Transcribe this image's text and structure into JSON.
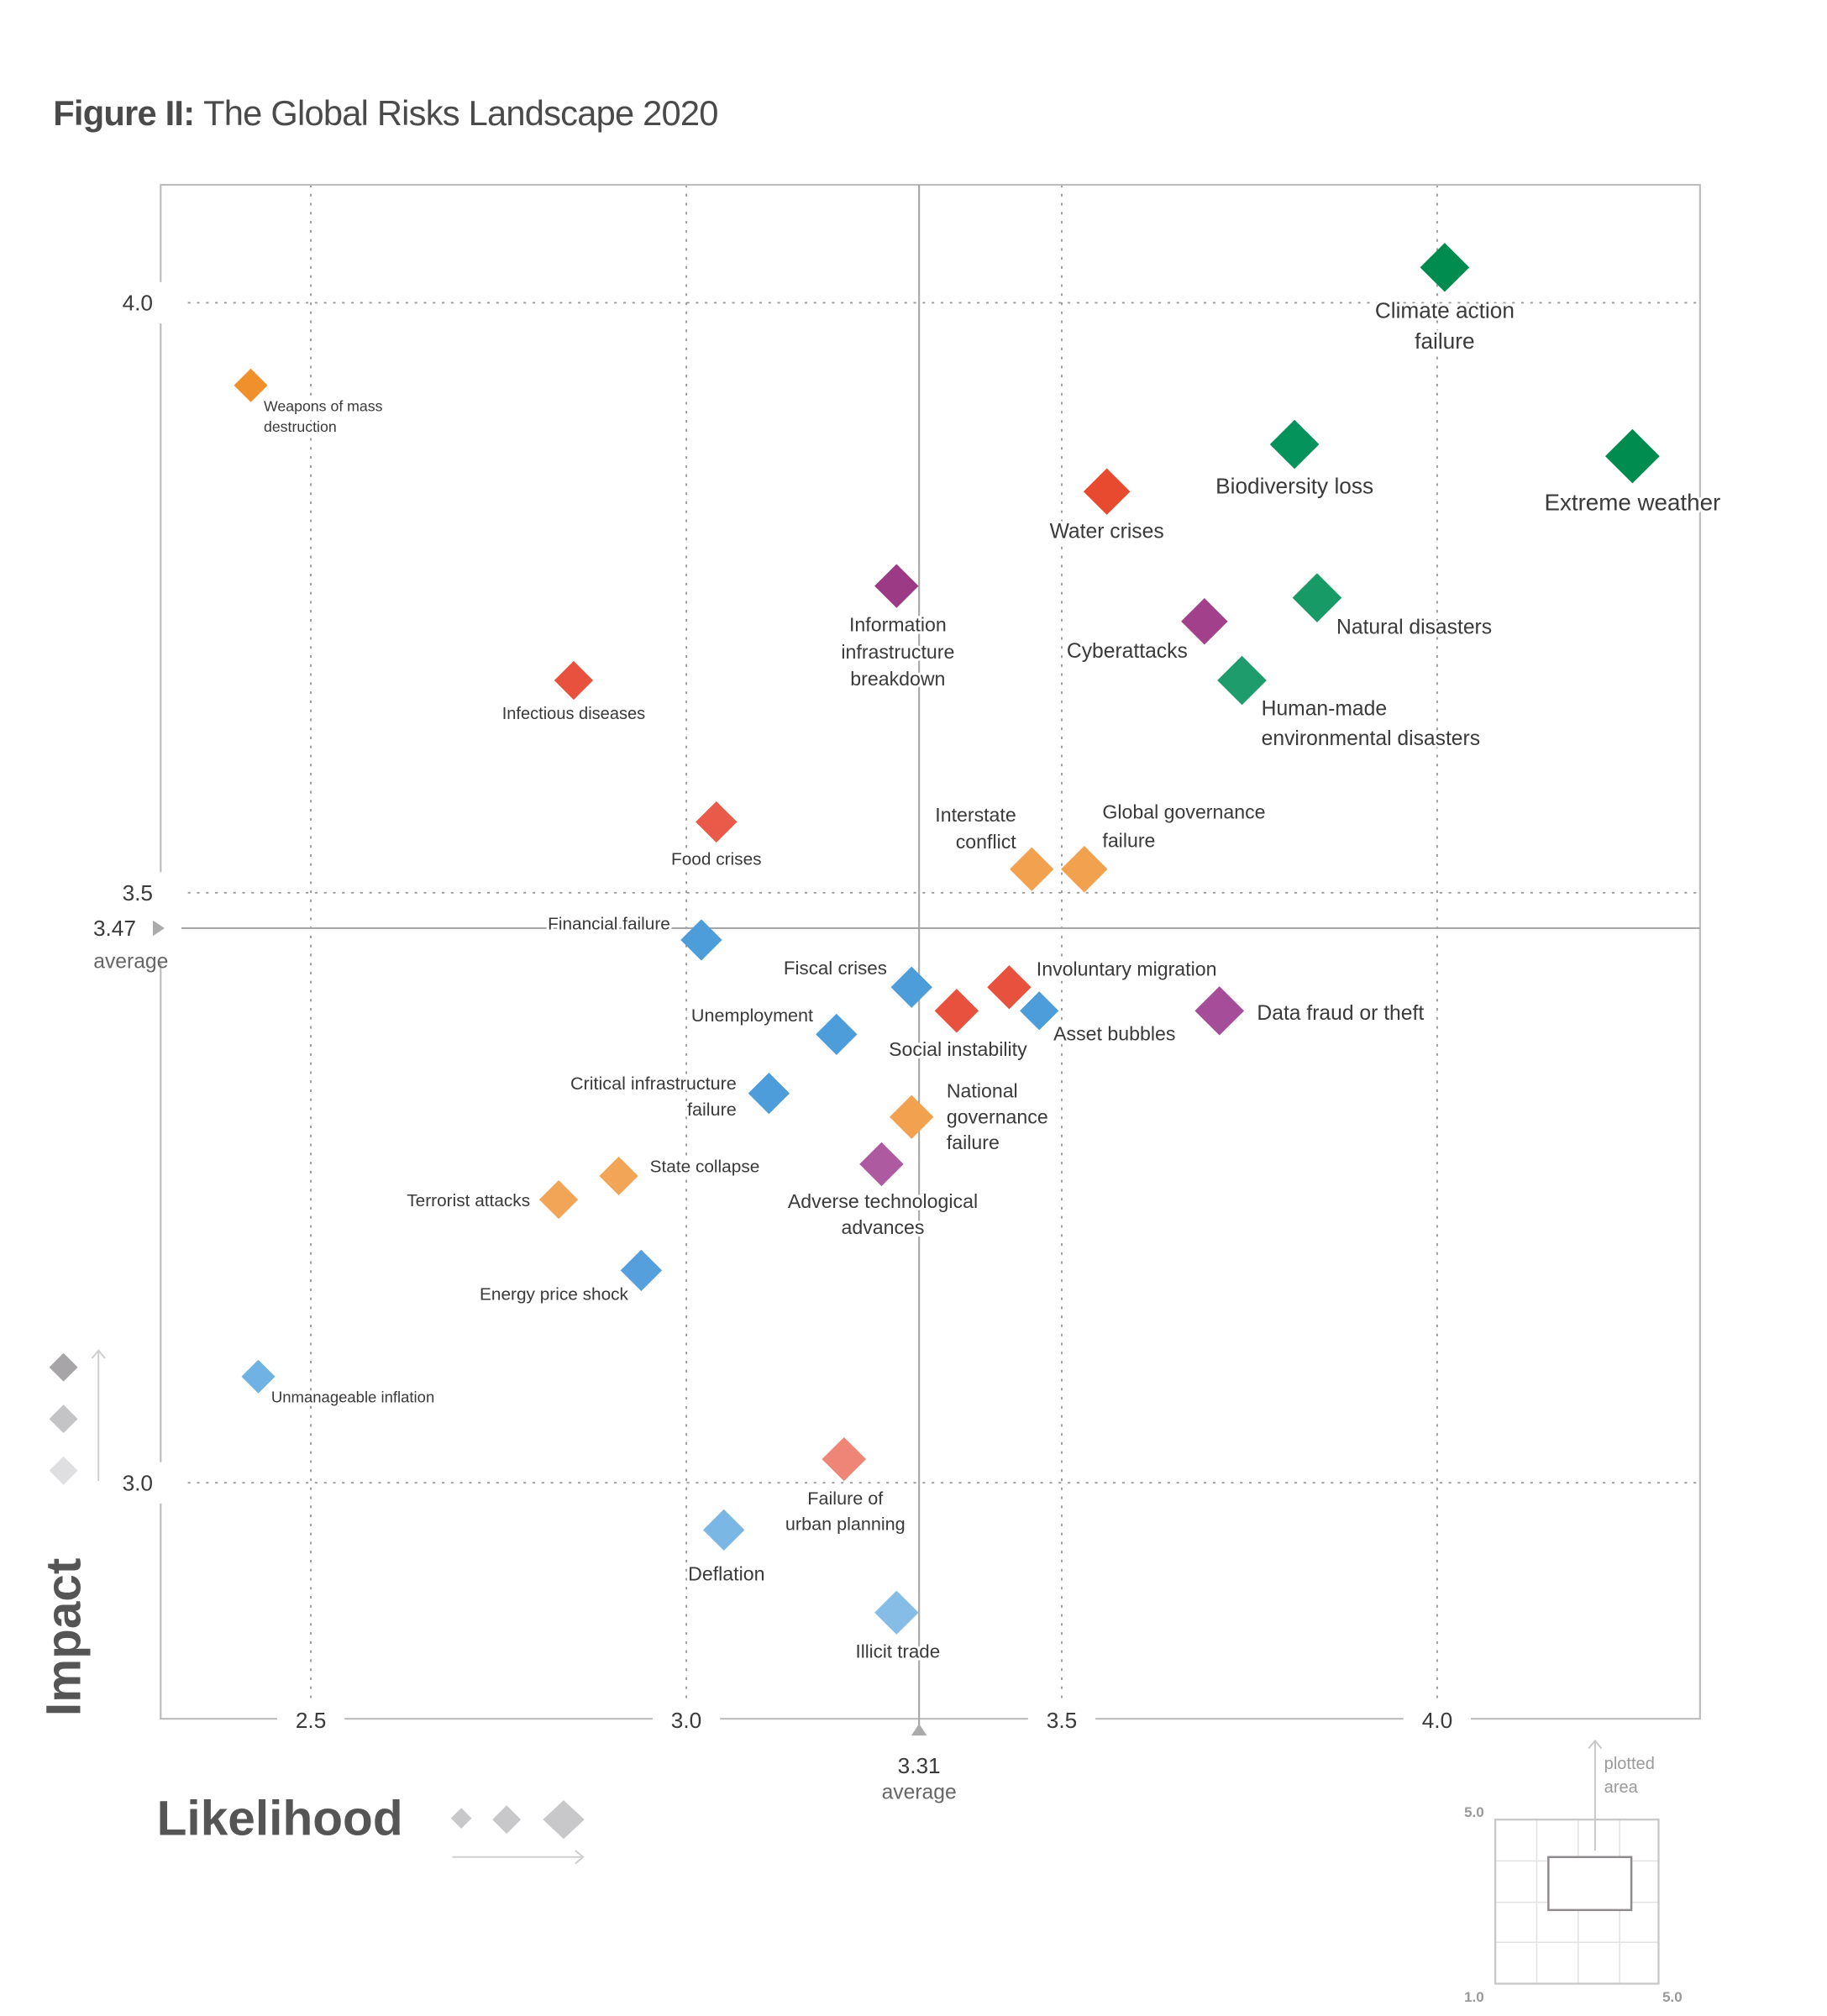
{
  "chart_data": {
    "type": "scatter",
    "title_prefix": "Figure II:",
    "title": "The Global Risks Landscape 2020",
    "xlabel": "Likelihood",
    "ylabel": "Impact",
    "xlim": [
      2.3,
      4.35
    ],
    "ylim": [
      2.8,
      4.1
    ],
    "x_ticks": [
      "2.5",
      "3.0",
      "3.5",
      "4.0"
    ],
    "y_ticks": [
      "4.0",
      "3.5",
      "3.0"
    ],
    "grid": true,
    "x_average": {
      "value": 3.31,
      "label": "3.31",
      "caption": "average"
    },
    "y_average": {
      "value": 3.47,
      "label": "3.47",
      "caption": "average"
    },
    "colors": {
      "economic": "#4d9ddb",
      "environmental": "#00904f",
      "geopolitical": "#f2a14e",
      "societal": "#e8513d",
      "technological": "#a23c8c"
    },
    "points": [
      {
        "name": "Climate action failure",
        "lines": [
          "Climate action",
          "failure"
        ],
        "x": 4.01,
        "y": 4.03,
        "color": "#008c4f"
      },
      {
        "name": "Extreme weather",
        "lines": [
          "Extreme weather"
        ],
        "x": 4.26,
        "y": 3.87,
        "color": "#008c4f"
      },
      {
        "name": "Biodiversity loss",
        "lines": [
          "Biodiversity loss"
        ],
        "x": 3.81,
        "y": 3.88,
        "color": "#05935c"
      },
      {
        "name": "Water crises",
        "lines": [
          "Water crises"
        ],
        "x": 3.56,
        "y": 3.84,
        "color": "#e84a30"
      },
      {
        "name": "Natural disasters",
        "lines": [
          "Natural disasters"
        ],
        "x": 3.84,
        "y": 3.75,
        "color": "#179a66"
      },
      {
        "name": "Cyberattacks",
        "lines": [
          "Cyberattacks"
        ],
        "x": 3.69,
        "y": 3.73,
        "color": "#a2408c"
      },
      {
        "name": "Human-made environmental disasters",
        "lines": [
          "Human-made",
          "environmental disasters"
        ],
        "x": 3.74,
        "y": 3.68,
        "color": "#1f9c6b"
      },
      {
        "name": "Information infrastructure breakdown",
        "lines": [
          "Information",
          "infrastructure",
          "breakdown"
        ],
        "x": 3.28,
        "y": 3.76,
        "color": "#9c3a86"
      },
      {
        "name": "Infectious diseases",
        "lines": [
          "Infectious diseases"
        ],
        "x": 2.85,
        "y": 3.68,
        "color": "#e8513d"
      },
      {
        "name": "Weapons of mass destruction",
        "lines": [
          "Weapons of mass",
          "destruction"
        ],
        "x": 2.42,
        "y": 3.93,
        "color": "#ef902b"
      },
      {
        "name": "Food crises",
        "lines": [
          "Food crises"
        ],
        "x": 3.04,
        "y": 3.56,
        "color": "#ea5a48"
      },
      {
        "name": "Interstate conflict",
        "lines": [
          "Interstate",
          "conflict"
        ],
        "x": 3.46,
        "y": 3.52,
        "color": "#f2a14e"
      },
      {
        "name": "Global governance failure",
        "lines": [
          "Global governance",
          "failure"
        ],
        "x": 3.53,
        "y": 3.52,
        "color": "#f2a14e"
      },
      {
        "name": "Financial failure",
        "lines": [
          "Financial failure"
        ],
        "x": 3.02,
        "y": 3.46,
        "color": "#4d9ddb"
      },
      {
        "name": "Fiscal crises",
        "lines": [
          "Fiscal crises"
        ],
        "x": 3.3,
        "y": 3.42,
        "color": "#4d9ddb"
      },
      {
        "name": "Involuntary migration",
        "lines": [
          "Involuntary migration"
        ],
        "x": 3.43,
        "y": 3.42,
        "color": "#e8513d"
      },
      {
        "name": "Social instability",
        "lines": [
          "Social instability"
        ],
        "x": 3.36,
        "y": 3.4,
        "color": "#e8513d"
      },
      {
        "name": "Asset bubbles",
        "lines": [
          "Asset bubbles"
        ],
        "x": 3.47,
        "y": 3.4,
        "color": "#4d9ddb"
      },
      {
        "name": "Data fraud or theft",
        "lines": [
          "Data fraud or theft"
        ],
        "x": 3.71,
        "y": 3.4,
        "color": "#a54d98"
      },
      {
        "name": "Unemployment",
        "lines": [
          "Unemployment"
        ],
        "x": 3.2,
        "y": 3.38,
        "color": "#4d9ddb"
      },
      {
        "name": "Critical infrastructure failure",
        "lines": [
          "Critical infrastructure",
          "failure"
        ],
        "x": 3.11,
        "y": 3.33,
        "color": "#4d9ddb"
      },
      {
        "name": "National governance failure",
        "lines": [
          "National",
          "governance",
          "failure"
        ],
        "x": 3.3,
        "y": 3.31,
        "color": "#f2a14e"
      },
      {
        "name": "Adverse technological advances",
        "lines": [
          "Adverse technological",
          "advances"
        ],
        "x": 3.26,
        "y": 3.27,
        "color": "#ae5aa0"
      },
      {
        "name": "State collapse",
        "lines": [
          "State collapse"
        ],
        "x": 2.91,
        "y": 3.26,
        "color": "#f2a457"
      },
      {
        "name": "Terrorist attacks",
        "lines": [
          "Terrorist attacks"
        ],
        "x": 2.83,
        "y": 3.24,
        "color": "#f2a457"
      },
      {
        "name": "Energy price shock",
        "lines": [
          "Energy price shock"
        ],
        "x": 2.94,
        "y": 3.18,
        "color": "#559fdc"
      },
      {
        "name": "Unmanageable inflation",
        "lines": [
          "Unmanageable inflation"
        ],
        "x": 2.43,
        "y": 3.09,
        "color": "#6fb2e3"
      },
      {
        "name": "Failure of urban planning",
        "lines": [
          "Failure of",
          "urban planning"
        ],
        "x": 3.21,
        "y": 3.02,
        "color": "#ee8577"
      },
      {
        "name": "Deflation",
        "lines": [
          "Deflation"
        ],
        "x": 3.05,
        "y": 2.96,
        "color": "#7ab7e5"
      },
      {
        "name": "Illicit trade",
        "lines": [
          "Illicit trade"
        ],
        "x": 3.28,
        "y": 2.89,
        "color": "#86bde6"
      }
    ],
    "inset": {
      "label_lines": [
        "plotted",
        "area"
      ],
      "y_max": "5.0",
      "x_min": "1.0",
      "x_max": "5.0"
    }
  }
}
